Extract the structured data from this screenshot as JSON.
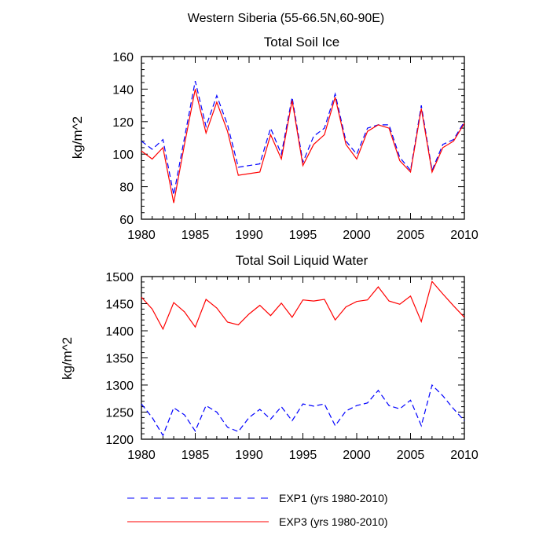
{
  "figure_title": "Western Siberia (55-66.5N,60-90E)",
  "legend": [
    {
      "label": "EXP1 (yrs 1980-2010)",
      "color": "#0000ff",
      "dash": "dashed"
    },
    {
      "label": "EXP3 (yrs 1980-2010)",
      "color": "#ff0000",
      "dash": "solid"
    }
  ],
  "chart_data": [
    {
      "type": "line",
      "title": "Total Soil Ice",
      "xlabel": "",
      "ylabel": "kg/m^2",
      "xlim": [
        1980,
        2010
      ],
      "ylim": [
        60,
        160
      ],
      "xticks": [
        1980,
        1985,
        1990,
        1995,
        2000,
        2005,
        2010
      ],
      "yticks": [
        60,
        80,
        100,
        120,
        140,
        160
      ],
      "x": [
        1980,
        1981,
        1982,
        1983,
        1984,
        1985,
        1986,
        1987,
        1988,
        1989,
        1990,
        1991,
        1992,
        1993,
        1994,
        1995,
        1996,
        1997,
        1998,
        1999,
        2000,
        2001,
        2002,
        2003,
        2004,
        2005,
        2006,
        2007,
        2008,
        2009,
        2010
      ],
      "series": [
        {
          "name": "EXP1 (yrs 1980-2010)",
          "color": "#0000ff",
          "dash": "dashed",
          "values": [
            108,
            103,
            109,
            75,
            110,
            145,
            117,
            136,
            118,
            92,
            93,
            94,
            116,
            100,
            135,
            95,
            111,
            116,
            137,
            108,
            100,
            116,
            118,
            118,
            98,
            90,
            130,
            90,
            106,
            109,
            120
          ]
        },
        {
          "name": "EXP3 (yrs 1980-2010)",
          "color": "#ff0000",
          "dash": "solid",
          "values": [
            102,
            97,
            104,
            70,
            106,
            140,
            113,
            132,
            114,
            87,
            88,
            89,
            112,
            97,
            133,
            93,
            106,
            112,
            135,
            106,
            97,
            114,
            118,
            116,
            96,
            89,
            128,
            89,
            104,
            108,
            119
          ]
        }
      ]
    },
    {
      "type": "line",
      "title": "Total Soil Liquid Water",
      "xlabel": "",
      "ylabel": "kg/m^2",
      "xlim": [
        1980,
        2010
      ],
      "ylim": [
        1200,
        1500
      ],
      "xticks": [
        1980,
        1985,
        1990,
        1995,
        2000,
        2005,
        2010
      ],
      "yticks": [
        1200,
        1250,
        1300,
        1350,
        1400,
        1450,
        1500
      ],
      "x": [
        1980,
        1981,
        1982,
        1983,
        1984,
        1985,
        1986,
        1987,
        1988,
        1989,
        1990,
        1991,
        1992,
        1993,
        1994,
        1995,
        1996,
        1997,
        1998,
        1999,
        2000,
        2001,
        2002,
        2003,
        2004,
        2005,
        2006,
        2007,
        2008,
        2009,
        2010
      ],
      "series": [
        {
          "name": "EXP1 (yrs 1980-2010)",
          "color": "#0000ff",
          "dash": "dashed",
          "values": [
            1265,
            1240,
            1207,
            1258,
            1245,
            1215,
            1262,
            1250,
            1222,
            1214,
            1240,
            1255,
            1237,
            1260,
            1234,
            1265,
            1261,
            1265,
            1225,
            1252,
            1262,
            1267,
            1290,
            1262,
            1256,
            1272,
            1225,
            1300,
            1280,
            1256,
            1234
          ]
        },
        {
          "name": "EXP3 (yrs 1980-2010)",
          "color": "#ff0000",
          "dash": "solid",
          "values": [
            1462,
            1440,
            1403,
            1452,
            1435,
            1407,
            1458,
            1442,
            1416,
            1411,
            1431,
            1447,
            1428,
            1451,
            1425,
            1457,
            1455,
            1458,
            1420,
            1444,
            1454,
            1457,
            1481,
            1455,
            1449,
            1464,
            1417,
            1491,
            1468,
            1446,
            1425
          ]
        }
      ]
    }
  ]
}
